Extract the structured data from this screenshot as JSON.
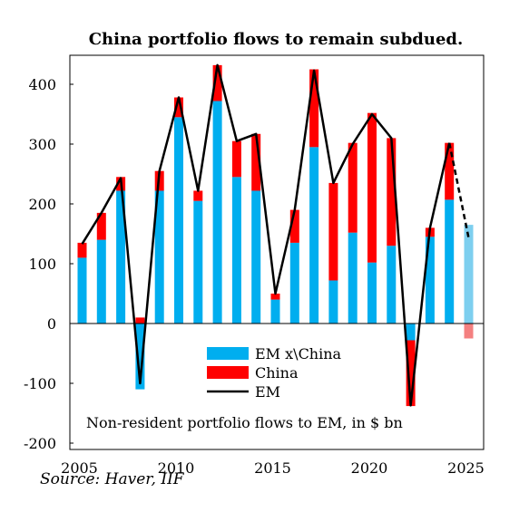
{
  "chart_data": {
    "type": "bar",
    "title": "China portfolio flows to remain subdued.",
    "subtitle_note": "Non-resident portfolio flows to EM, in $ bn",
    "source": "Source: Haver, IIF",
    "xlabel": "",
    "ylabel": "",
    "ylim": [
      -200,
      450
    ],
    "yticks": [
      -200,
      -100,
      0,
      100,
      200,
      300,
      400
    ],
    "xticks": [
      2005,
      2010,
      2015,
      2020,
      2025
    ],
    "grid": false,
    "legend_position": "lower-center",
    "stacked": true,
    "categories": [
      2005,
      2006,
      2007,
      2008,
      2009,
      2010,
      2011,
      2012,
      2013,
      2014,
      2015,
      2016,
      2017,
      2018,
      2019,
      2020,
      2021,
      2022,
      2023,
      2024,
      2025
    ],
    "series": [
      {
        "name": "EM x\\China",
        "type": "bar",
        "color": "#00aeef",
        "forecast_color": "#7dcfef",
        "values": [
          110,
          140,
          222,
          -110,
          222,
          345,
          205,
          372,
          245,
          222,
          40,
          135,
          295,
          72,
          152,
          102,
          130,
          -28,
          145,
          207,
          165
        ]
      },
      {
        "name": "China",
        "type": "bar",
        "color": "#ff0000",
        "forecast_color": "#f48080",
        "values": [
          25,
          45,
          23,
          10,
          33,
          33,
          17,
          60,
          60,
          95,
          10,
          55,
          130,
          163,
          150,
          250,
          180,
          -110,
          15,
          95,
          -25
        ]
      },
      {
        "name": "EM",
        "type": "line",
        "color": "#000000",
        "values": [
          133,
          185,
          243,
          -100,
          255,
          378,
          222,
          432,
          305,
          317,
          50,
          190,
          423,
          235,
          300,
          350,
          310,
          -137,
          160,
          302,
          143
        ],
        "forecast_from": 2024
      }
    ],
    "forecast_category": 2025
  }
}
